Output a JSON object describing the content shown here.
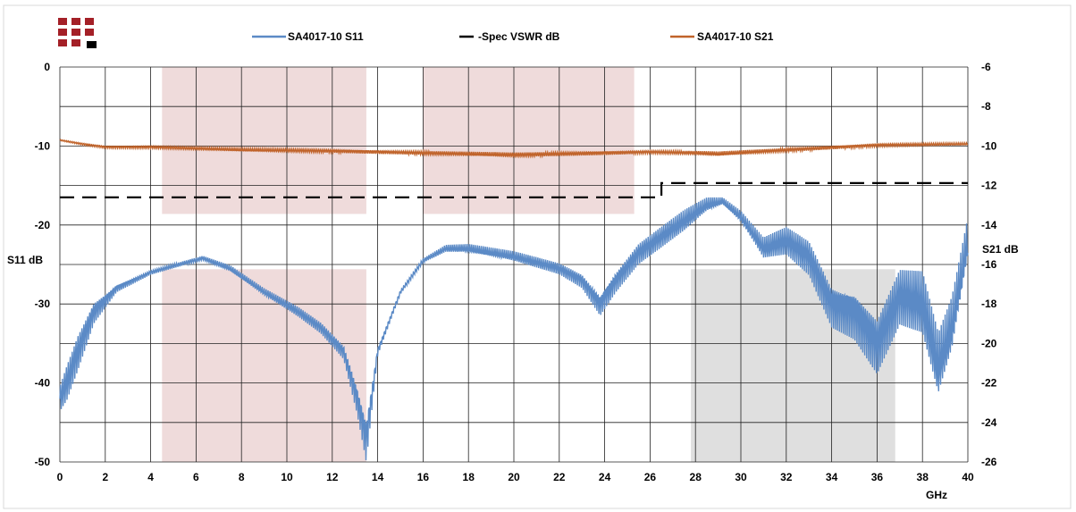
{
  "chart_data": {
    "type": "line",
    "x_unit": "GHz",
    "left_axis": {
      "label": "S11 dB",
      "range": [
        -50,
        0
      ],
      "ticks": [
        0,
        -10,
        -20,
        -30,
        -40,
        -50
      ]
    },
    "right_axis": {
      "label": "S21 dB",
      "range": [
        -26,
        -6
      ],
      "ticks": [
        -6,
        -8,
        -10,
        -12,
        -14,
        -16,
        -18,
        -20,
        -22,
        -24,
        -26
      ]
    },
    "x_range": [
      0,
      40
    ],
    "x_ticks": [
      0,
      2,
      4,
      6,
      8,
      10,
      12,
      14,
      16,
      18,
      20,
      22,
      24,
      26,
      28,
      30,
      32,
      34,
      36,
      38,
      40
    ],
    "grid": true,
    "legend_position": "top",
    "colors": {
      "s11": "#5b8ac6",
      "s21": "#c0632a",
      "spec": "#000000",
      "band_pink": "#ecd5d5",
      "band_gray": "#d9d9d9"
    },
    "bands": [
      {
        "x": [
          4.5,
          13.5
        ],
        "axis": "S11",
        "y": [
          -18.6,
          0
        ],
        "color": "pink"
      },
      {
        "x": [
          16,
          25.3
        ],
        "axis": "S11",
        "y": [
          -18.6,
          0
        ],
        "color": "pink"
      },
      {
        "x": [
          4.5,
          13.5
        ],
        "axis": "S11",
        "y": [
          -50,
          -25.6
        ],
        "color": "pink"
      },
      {
        "x": [
          27.8,
          36.8
        ],
        "axis": "S11",
        "y": [
          -50,
          -25.6
        ],
        "color": "gray"
      }
    ],
    "series": [
      {
        "name": "SA4017-10 S11",
        "axis": "left",
        "style": "solid",
        "x": [
          0,
          0.3,
          0.8,
          1.5,
          2.5,
          4,
          5.5,
          6.3,
          7.5,
          9,
          10.5,
          11.5,
          12.5,
          13.1,
          13.5,
          14,
          15,
          16,
          17,
          18,
          20,
          22,
          23,
          23.8,
          24.5,
          25.5,
          26.5,
          27.5,
          28.5,
          29.2,
          30,
          31,
          32,
          33,
          34,
          35,
          36,
          37,
          38,
          38.7,
          39.3,
          40
        ],
        "y": [
          -42,
          -40,
          -36,
          -31,
          -28,
          -26,
          -24.8,
          -24.2,
          -25.5,
          -28.5,
          -31,
          -33,
          -36,
          -42,
          -47,
          -36,
          -28.5,
          -24.5,
          -23,
          -23,
          -24,
          -25.5,
          -27,
          -30,
          -27,
          -23.5,
          -21.5,
          -19.5,
          -17.5,
          -17,
          -19,
          -23,
          -22,
          -24,
          -30,
          -31,
          -35,
          -29,
          -30,
          -38,
          -33,
          -22
        ],
        "ripple": [
          1.8,
          2.5,
          2.5,
          1.5,
          0.5,
          0.3,
          0.3,
          0.3,
          0.4,
          0.5,
          0.7,
          0.8,
          1.0,
          2.0,
          3.0,
          0.5,
          0.3,
          0.3,
          0.5,
          0.6,
          0.7,
          0.8,
          1.0,
          1.5,
          1.5,
          1.5,
          1.5,
          1.5,
          1.0,
          0.5,
          0.8,
          1.5,
          2.0,
          2.5,
          3.0,
          3.5,
          4.0,
          4.0,
          4.5,
          4.5,
          4.0,
          3.0
        ]
      },
      {
        "name": "Spec VSWR dB",
        "axis": "left",
        "style": "dashed",
        "x": [
          0,
          26.5,
          26.5,
          40
        ],
        "y": [
          -16.5,
          -16.5,
          -14.7,
          -14.7
        ]
      },
      {
        "name": "SA4017-10 S21",
        "axis": "right",
        "style": "solid",
        "x": [
          0,
          1,
          2,
          4,
          8,
          12,
          16,
          20,
          24,
          26,
          28,
          29,
          32,
          36,
          40
        ],
        "y": [
          -9.7,
          -9.9,
          -10.05,
          -10.05,
          -10.2,
          -10.25,
          -10.35,
          -10.45,
          -10.35,
          -10.3,
          -10.35,
          -10.4,
          -10.2,
          -9.95,
          -9.9
        ],
        "ripple": [
          0.03,
          0.05,
          0.06,
          0.07,
          0.08,
          0.09,
          0.1,
          0.12,
          0.1,
          0.08,
          0.1,
          0.12,
          0.1,
          0.08,
          0.06
        ]
      }
    ]
  }
}
